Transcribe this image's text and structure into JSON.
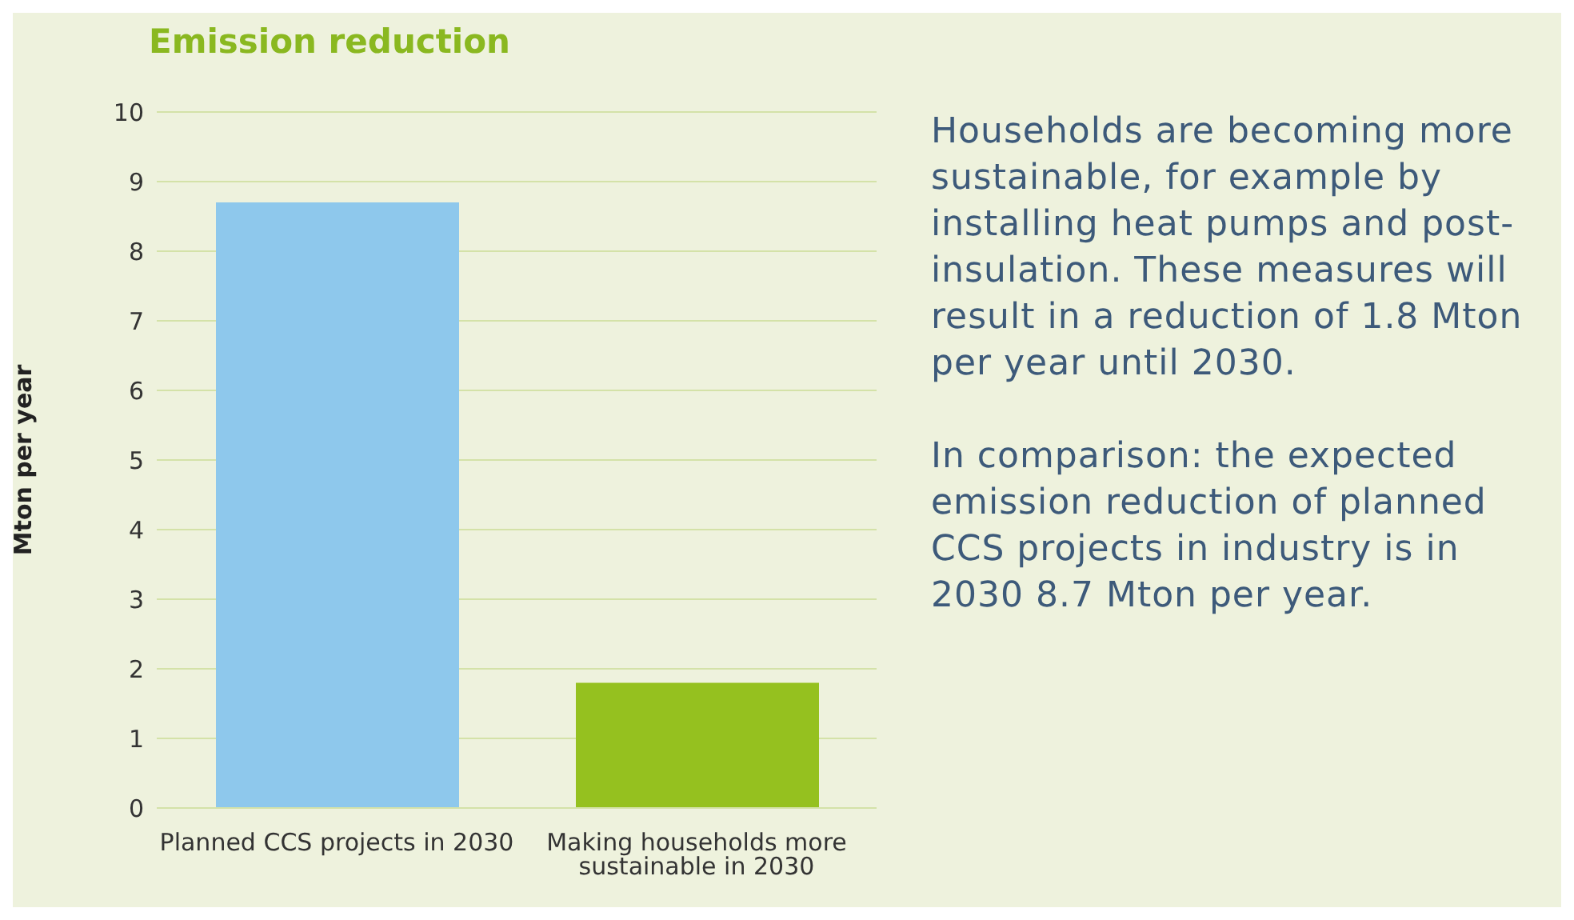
{
  "chart_data": {
    "type": "bar",
    "title": "Emission reduction",
    "ylabel": "Mton per year",
    "categories": [
      "Planned CCS projects in 2030",
      "Making households more sustainable in 2030"
    ],
    "values": [
      8.7,
      1.8
    ],
    "colors": [
      "#8ec8ec",
      "#95c11f"
    ],
    "ylim": [
      0,
      10
    ],
    "yticks": [
      0,
      1,
      2,
      3,
      4,
      5,
      6,
      7,
      8,
      9,
      10
    ],
    "grid": "y",
    "legend": false,
    "annotations": [
      "Households are becoming more sustainable, for example by installing heat pumps and post-insulation. These measures will result in a reduction of 1.8 Mton per year until 2030.",
      "In comparison: the expected emission reduction of planned CCS projects in industry is in 2030 8.7 Mton per year."
    ]
  }
}
